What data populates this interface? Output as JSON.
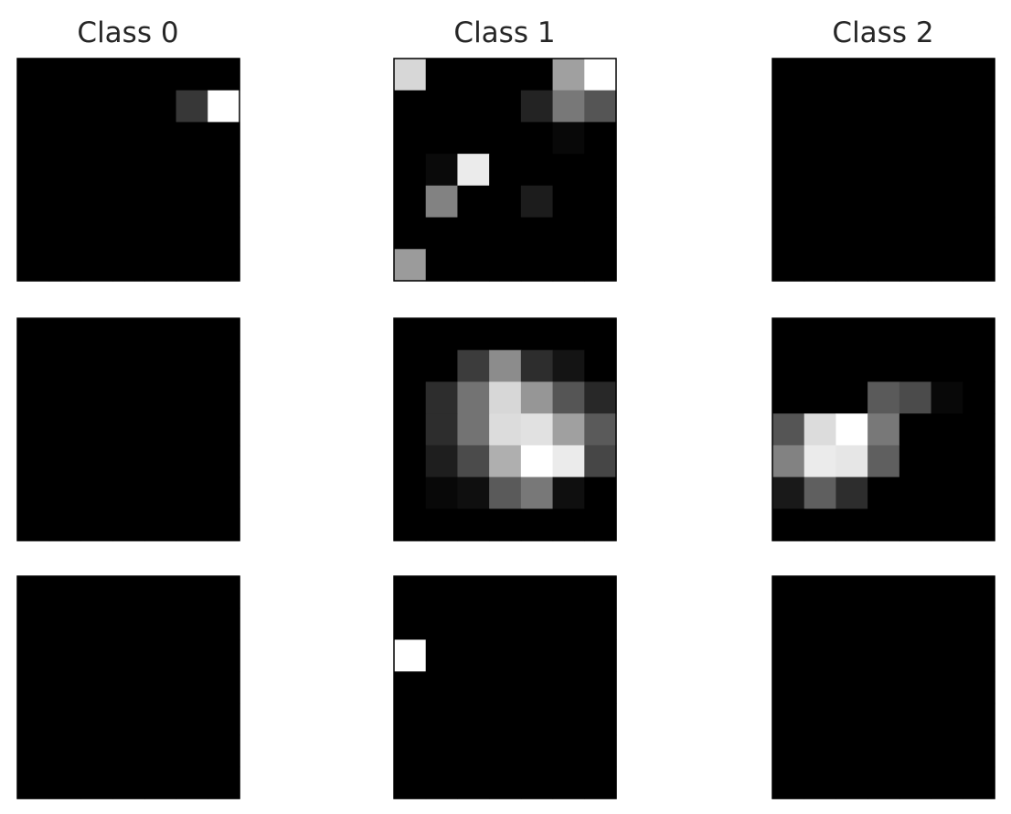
{
  "chart_data": {
    "type": "heatmap",
    "cmap": "gray",
    "vmin": 0,
    "vmax": 255,
    "grid_rows": 3,
    "grid_cols": 3,
    "column_titles": [
      "Class 0",
      "Class 1",
      "Class 2"
    ],
    "panels": [
      {
        "row": 0,
        "col": 0,
        "values": [
          [
            0,
            0,
            0,
            0,
            0,
            0,
            0
          ],
          [
            0,
            0,
            0,
            0,
            0,
            55,
            255
          ],
          [
            0,
            0,
            0,
            0,
            0,
            0,
            0
          ],
          [
            0,
            0,
            0,
            0,
            0,
            0,
            0
          ],
          [
            0,
            0,
            0,
            0,
            0,
            0,
            0
          ],
          [
            0,
            0,
            0,
            0,
            0,
            0,
            0
          ],
          [
            0,
            0,
            0,
            0,
            0,
            0,
            0
          ]
        ]
      },
      {
        "row": 0,
        "col": 1,
        "values": [
          [
            215,
            0,
            0,
            0,
            0,
            160,
            255
          ],
          [
            0,
            0,
            0,
            0,
            35,
            120,
            85
          ],
          [
            0,
            0,
            0,
            0,
            0,
            8,
            0
          ],
          [
            0,
            10,
            235,
            0,
            0,
            0,
            0
          ],
          [
            0,
            130,
            0,
            0,
            28,
            0,
            0
          ],
          [
            0,
            0,
            0,
            0,
            0,
            0,
            0
          ],
          [
            155,
            0,
            0,
            0,
            0,
            0,
            0
          ]
        ]
      },
      {
        "row": 0,
        "col": 2,
        "values": [
          [
            0,
            0,
            0,
            0,
            0,
            0,
            0
          ],
          [
            0,
            0,
            0,
            0,
            0,
            0,
            0
          ],
          [
            0,
            0,
            0,
            0,
            0,
            0,
            0
          ],
          [
            0,
            0,
            0,
            0,
            0,
            0,
            0
          ],
          [
            0,
            0,
            0,
            0,
            0,
            0,
            0
          ],
          [
            0,
            0,
            0,
            0,
            0,
            0,
            0
          ],
          [
            0,
            0,
            0,
            0,
            0,
            0,
            0
          ]
        ]
      },
      {
        "row": 1,
        "col": 0,
        "values": [
          [
            0,
            0,
            0,
            0,
            0,
            0,
            0
          ],
          [
            0,
            0,
            0,
            0,
            0,
            0,
            0
          ],
          [
            0,
            0,
            0,
            0,
            0,
            0,
            0
          ],
          [
            0,
            0,
            0,
            0,
            0,
            0,
            0
          ],
          [
            0,
            0,
            0,
            0,
            0,
            0,
            0
          ],
          [
            0,
            0,
            0,
            0,
            0,
            0,
            0
          ],
          [
            0,
            0,
            0,
            0,
            0,
            0,
            0
          ]
        ]
      },
      {
        "row": 1,
        "col": 1,
        "values": [
          [
            0,
            0,
            0,
            0,
            0,
            0,
            0
          ],
          [
            0,
            0,
            60,
            140,
            45,
            20,
            0
          ],
          [
            0,
            45,
            115,
            215,
            150,
            85,
            40
          ],
          [
            0,
            45,
            115,
            220,
            225,
            160,
            90
          ],
          [
            0,
            30,
            75,
            175,
            255,
            235,
            70
          ],
          [
            0,
            8,
            15,
            90,
            120,
            15,
            0
          ],
          [
            0,
            0,
            0,
            0,
            0,
            0,
            0
          ]
        ]
      },
      {
        "row": 1,
        "col": 2,
        "values": [
          [
            0,
            0,
            0,
            0,
            0,
            0,
            0
          ],
          [
            0,
            0,
            0,
            0,
            0,
            0,
            0
          ],
          [
            0,
            0,
            0,
            90,
            75,
            8,
            0
          ],
          [
            85,
            220,
            255,
            120,
            0,
            0,
            0
          ],
          [
            130,
            235,
            230,
            95,
            0,
            0,
            0
          ],
          [
            25,
            95,
            45,
            0,
            0,
            0,
            0
          ],
          [
            0,
            0,
            0,
            0,
            0,
            0,
            0
          ]
        ]
      },
      {
        "row": 2,
        "col": 0,
        "values": [
          [
            0,
            0,
            0,
            0,
            0,
            0,
            0
          ],
          [
            0,
            0,
            0,
            0,
            0,
            0,
            0
          ],
          [
            0,
            0,
            0,
            0,
            0,
            0,
            0
          ],
          [
            0,
            0,
            0,
            0,
            0,
            0,
            0
          ],
          [
            0,
            0,
            0,
            0,
            0,
            0,
            0
          ],
          [
            0,
            0,
            0,
            0,
            0,
            0,
            0
          ],
          [
            0,
            0,
            0,
            0,
            0,
            0,
            0
          ]
        ]
      },
      {
        "row": 2,
        "col": 1,
        "values": [
          [
            0,
            0,
            0,
            0,
            0,
            0,
            0
          ],
          [
            0,
            0,
            0,
            0,
            0,
            0,
            0
          ],
          [
            255,
            0,
            0,
            0,
            0,
            0,
            0
          ],
          [
            0,
            0,
            0,
            0,
            0,
            0,
            0
          ],
          [
            0,
            0,
            0,
            0,
            0,
            0,
            0
          ],
          [
            0,
            0,
            0,
            0,
            0,
            0,
            0
          ],
          [
            0,
            0,
            0,
            0,
            0,
            0,
            0
          ]
        ]
      },
      {
        "row": 2,
        "col": 2,
        "values": [
          [
            0,
            0,
            0,
            0,
            0,
            0,
            0
          ],
          [
            0,
            0,
            0,
            0,
            0,
            0,
            0
          ],
          [
            0,
            0,
            0,
            0,
            0,
            0,
            0
          ],
          [
            0,
            0,
            0,
            0,
            0,
            0,
            0
          ],
          [
            0,
            0,
            0,
            0,
            0,
            0,
            0
          ],
          [
            0,
            0,
            0,
            0,
            0,
            0,
            0
          ],
          [
            0,
            0,
            0,
            0,
            0,
            0,
            0
          ]
        ]
      }
    ]
  }
}
